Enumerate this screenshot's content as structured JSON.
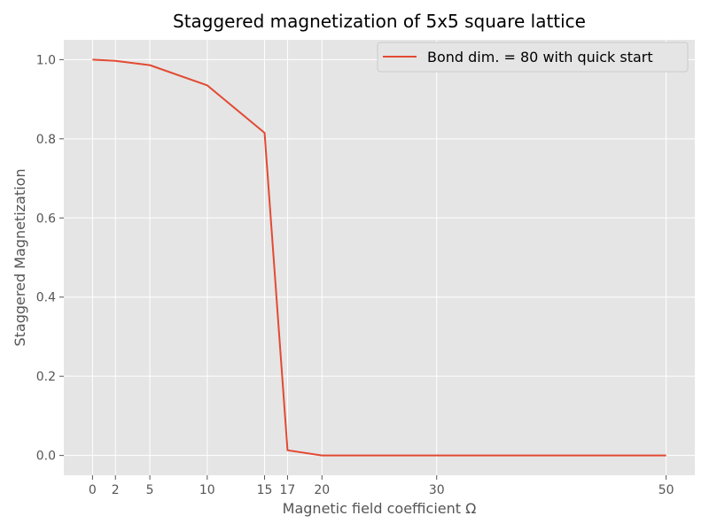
{
  "chart_data": {
    "type": "line",
    "title": "Staggered magnetization of 5x5 square lattice",
    "xlabel": "Magnetic field coefficient Ω",
    "ylabel": "Staggered Magnetization",
    "xlim": [
      -2.5,
      52.5
    ],
    "ylim": [
      -0.05,
      1.05
    ],
    "xticks": [
      0,
      2,
      5,
      10,
      15,
      17,
      20,
      30,
      50
    ],
    "yticks": [
      0.0,
      0.2,
      0.4,
      0.6,
      0.8,
      1.0
    ],
    "ytick_labels": [
      "0.0",
      "0.2",
      "0.4",
      "0.6",
      "0.8",
      "1.0"
    ],
    "grid": true,
    "legend_position": "top-right",
    "series": [
      {
        "name": "Bond dim. = 80 with quick start",
        "color": "#e24a33",
        "x": [
          0,
          2,
          5,
          10,
          15,
          17,
          20,
          30,
          50
        ],
        "y": [
          1.0,
          0.997,
          0.986,
          0.935,
          0.815,
          0.013,
          0.0,
          0.0,
          0.0
        ]
      }
    ],
    "plot_background": "#e5e5e5",
    "grid_color": "#ffffff"
  }
}
